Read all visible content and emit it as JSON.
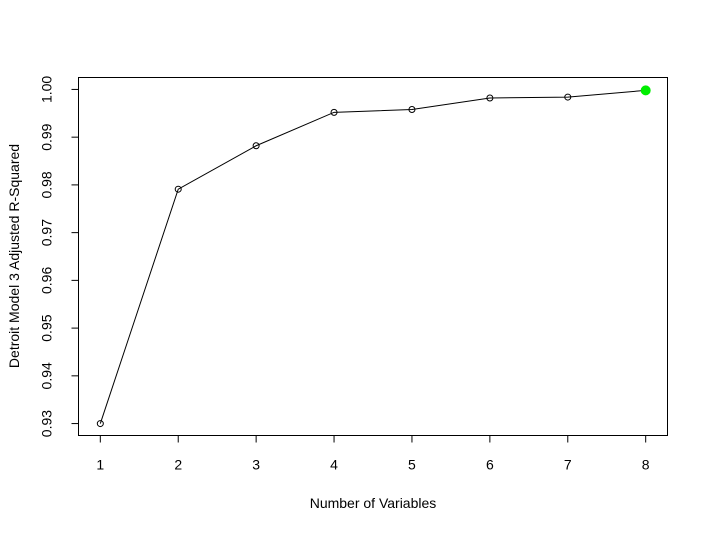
{
  "chart_data": {
    "type": "line",
    "title": "",
    "xlabel": "Number of Variables",
    "ylabel": "Detroit Model 3 Adjusted R-Squared",
    "x": [
      1,
      2,
      3,
      4,
      5,
      6,
      7,
      8
    ],
    "series": [
      {
        "values": [
          0.93,
          0.9791,
          0.9882,
          0.9952,
          0.9958,
          0.9982,
          0.9984,
          0.9998
        ]
      }
    ],
    "highlight": {
      "x": 8,
      "y": 0.9998,
      "color": "#00ee00"
    },
    "xlim": [
      0.72,
      8.28
    ],
    "ylim": [
      0.9275,
      1.0025
    ],
    "xticks": [
      1,
      2,
      3,
      4,
      5,
      6,
      7,
      8
    ],
    "xtick_labels": [
      "1",
      "2",
      "3",
      "4",
      "5",
      "6",
      "7",
      "8"
    ],
    "yticks": [
      0.93,
      0.94,
      0.95,
      0.96,
      0.97,
      0.98,
      0.99,
      1.0
    ],
    "ytick_labels": [
      "0.93",
      "0.94",
      "0.95",
      "0.96",
      "0.97",
      "0.98",
      "0.99",
      "1.00"
    ],
    "grid": false,
    "marker": "open-circle",
    "line_color": "#000000"
  }
}
